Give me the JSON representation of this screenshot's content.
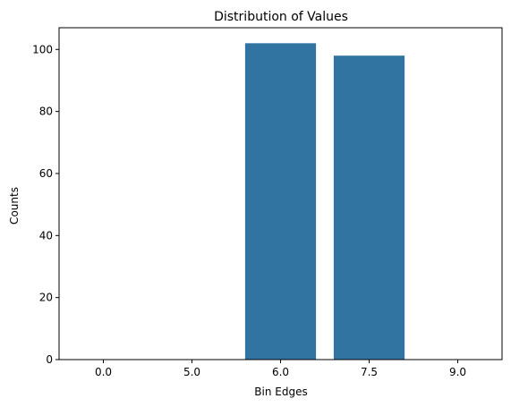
{
  "chart_data": {
    "type": "bar",
    "title": "Distribution of Values",
    "xlabel": "Bin Edges",
    "ylabel": "Counts",
    "categories": [
      "0.0",
      "5.0",
      "6.0",
      "7.5",
      "9.0"
    ],
    "values": [
      0,
      0,
      102,
      98,
      0
    ],
    "ylim": [
      0,
      107
    ],
    "yticks": [
      0,
      20,
      40,
      60,
      80,
      100
    ],
    "bar_color": "#3274a1",
    "grid": false,
    "legend": "none"
  }
}
